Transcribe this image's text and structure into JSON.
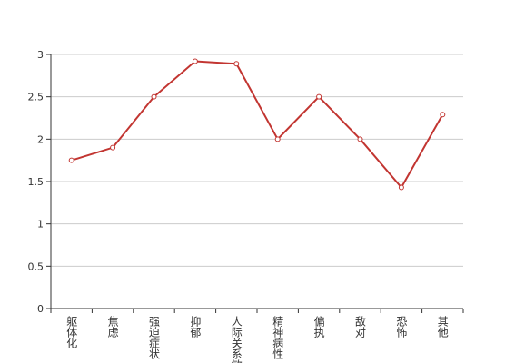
{
  "chart_data": {
    "type": "line",
    "categories": [
      "躯体化",
      "焦虑",
      "强迫症状",
      "抑郁",
      "人际关系敏感",
      "精神病性",
      "偏执",
      "敌对",
      "恐怖",
      "其他"
    ],
    "series": [
      {
        "color": "#c23531",
        "values": [
          1.75,
          1.9,
          2.5,
          2.92,
          2.89,
          2.0,
          2.5,
          2.0,
          1.43,
          2.29
        ]
      }
    ],
    "ylim": [
      0,
      3
    ],
    "yticks": [
      0,
      0.5,
      1,
      1.5,
      2,
      2.5,
      3
    ],
    "grid": true
  }
}
